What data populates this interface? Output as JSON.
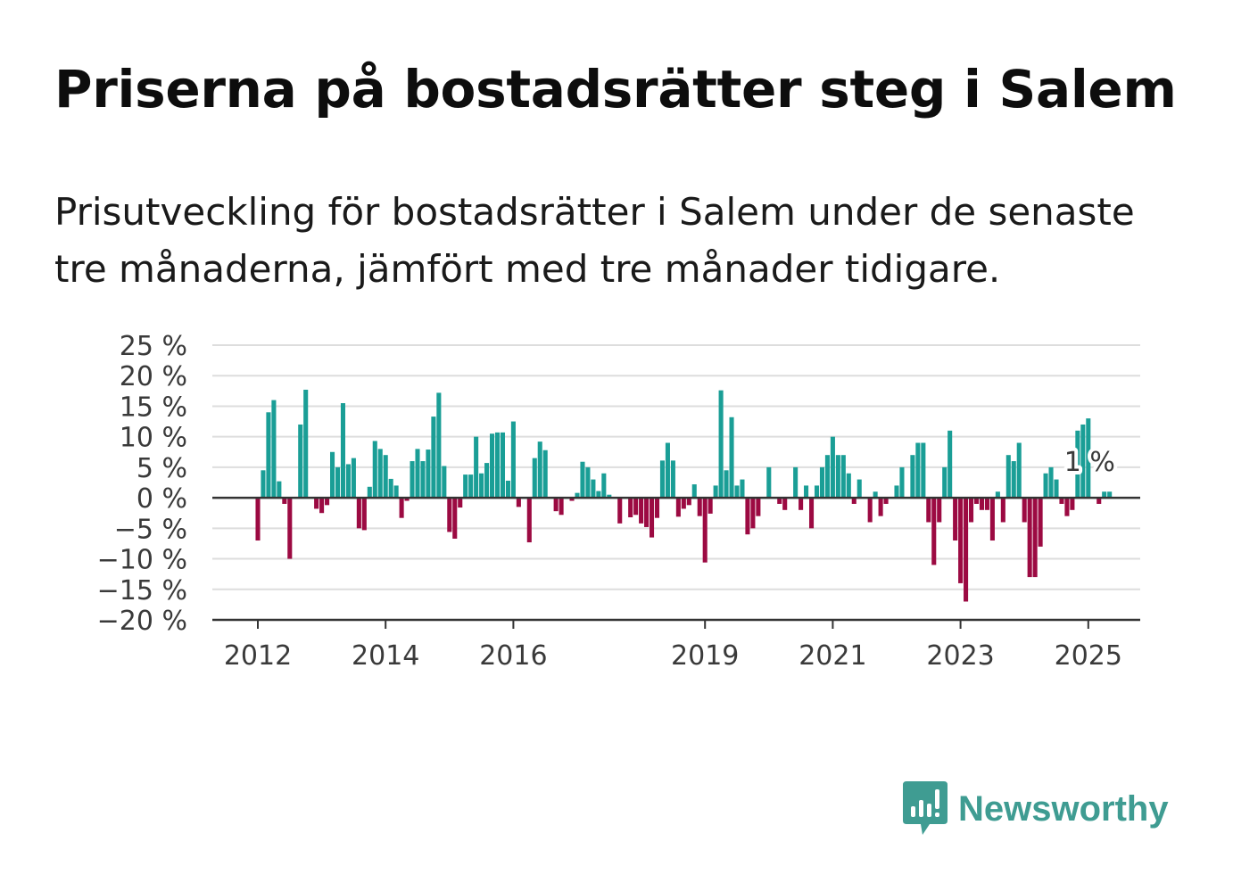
{
  "title": "Priserna på bostadsrätter steg i Salem",
  "subtitle": "Prisutveckling för bostadsrätter i Salem under de senaste tre månaderna, jämfört med tre månader tidigare.",
  "brand": {
    "name": "Newsworthy",
    "icon": "newsworthy-logo-icon"
  },
  "colors": {
    "positive": "#1a9e96",
    "negative": "#9c0a42",
    "grid": "#dddddd",
    "axis": "#333333",
    "brand": "#3f9c92"
  },
  "chart_data": {
    "type": "bar",
    "ylim": [
      -20,
      25
    ],
    "yticks": [
      25,
      20,
      15,
      10,
      5,
      0,
      -5,
      -10,
      -15,
      -20
    ],
    "ytick_labels": [
      "25 %",
      "20 %",
      "15 %",
      "10 %",
      "5 %",
      "0 %",
      "−5 %",
      "−10 %",
      "−15 %",
      "−20 %"
    ],
    "xticks": [
      2012,
      2014,
      2016,
      2019,
      2021,
      2023,
      2025
    ],
    "xtick_labels": [
      "2012",
      "2014",
      "2016",
      "2019",
      "2021",
      "2023",
      "2025"
    ],
    "x_start": "2012-01",
    "x_frequency": "monthly",
    "grid": true,
    "annotation": {
      "text": "1 %",
      "x": "2025-01",
      "y": 1
    },
    "values": [
      -7,
      4.5,
      14,
      16,
      2.7,
      -1,
      -10,
      0,
      12,
      17.7,
      0,
      -1.8,
      -2.5,
      -1.2,
      7.5,
      5,
      15.5,
      5.5,
      6.5,
      -5,
      -5.3,
      1.8,
      9.3,
      8,
      7,
      3.1,
      2,
      -3.3,
      -0.5,
      6,
      8,
      6,
      7.9,
      13.3,
      17.2,
      5.2,
      -5.6,
      -6.7,
      -1.6,
      3.8,
      3.8,
      10,
      4,
      5.7,
      10.5,
      10.7,
      10.7,
      2.8,
      12.5,
      -1.5,
      0,
      -7.3,
      6.5,
      9.2,
      7.8,
      0,
      -2.2,
      -2.8,
      0,
      -0.5,
      0.8,
      5.9,
      5,
      3,
      1.1,
      4,
      0.5,
      0,
      -4.2,
      0,
      -3.2,
      -2.8,
      -4.2,
      -4.8,
      -6.5,
      -3.3,
      6.1,
      9,
      6.1,
      -3.1,
      -1.8,
      -1.2,
      2.2,
      -3,
      -10.6,
      -2.6,
      2,
      17.6,
      4.5,
      13.2,
      2,
      3,
      -6,
      -5,
      -3,
      0,
      5,
      0,
      -1,
      -2,
      0,
      5,
      -2,
      2,
      -5,
      2,
      5,
      7,
      10,
      7,
      7,
      4,
      -1,
      3,
      0,
      -4,
      1,
      -3,
      -1,
      0,
      2,
      5,
      0,
      7,
      9,
      9,
      -4,
      -11,
      -4,
      5,
      11,
      -7,
      -14,
      -17,
      -4,
      -1,
      -2,
      -2,
      -7,
      1,
      -4,
      7,
      6,
      9,
      -4,
      -13,
      -13,
      -8,
      4,
      5,
      3,
      -1,
      -3,
      -2,
      11,
      12,
      13,
      0,
      -1,
      1,
      1
    ]
  }
}
